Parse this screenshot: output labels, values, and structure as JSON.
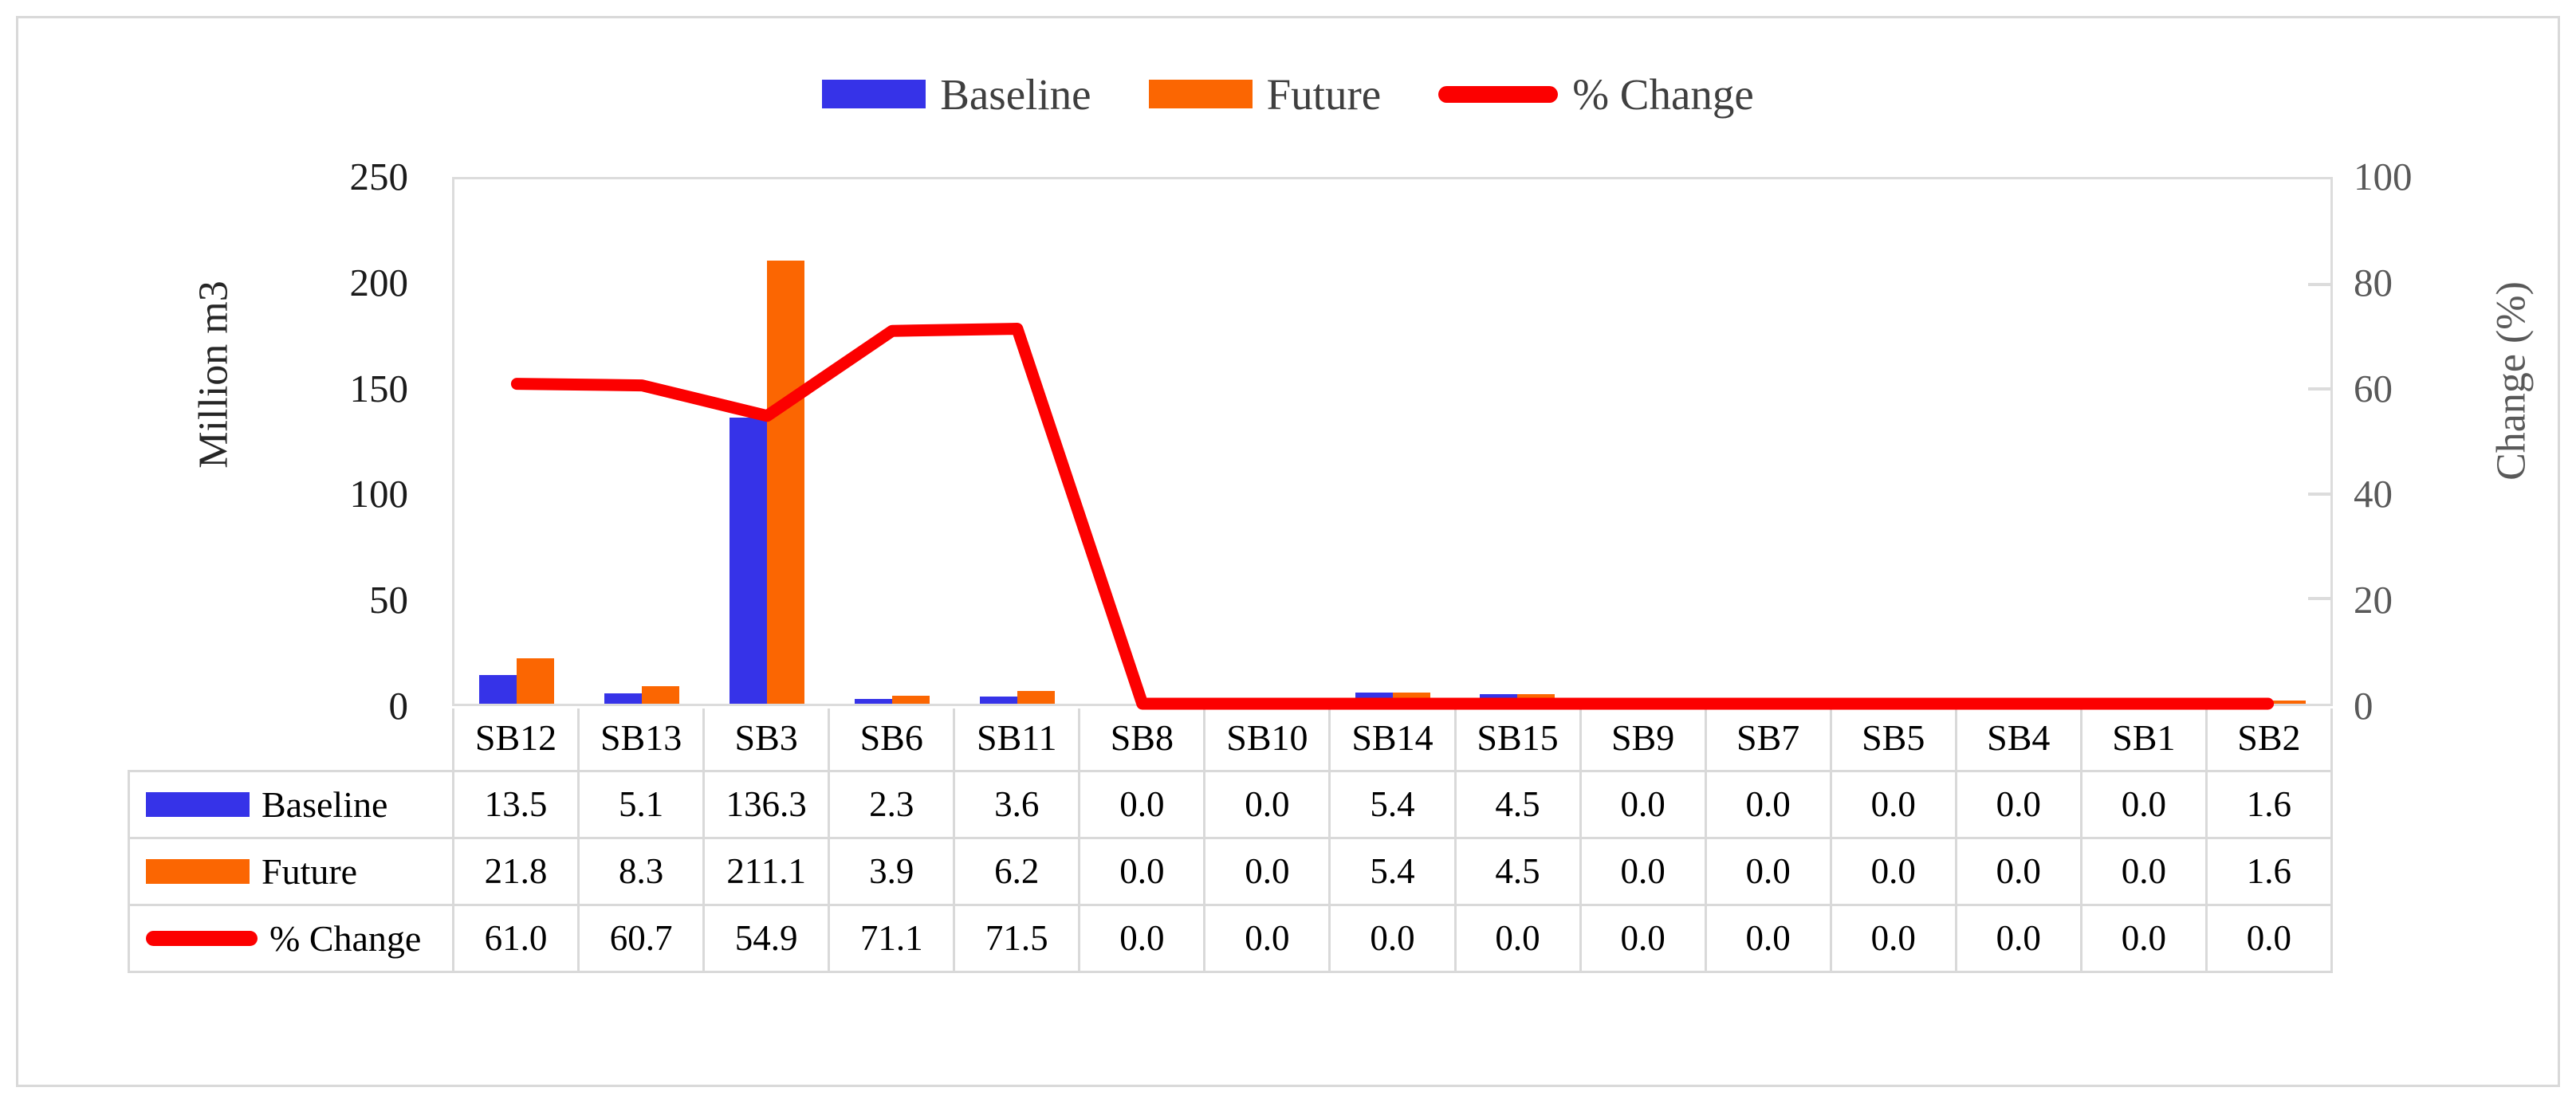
{
  "figure": {
    "background_color": "#FFFFFF",
    "frame_color": "#D9D9D9"
  },
  "chart_data": {
    "type": "bar",
    "subtype": "combo bar + line with data table",
    "categories": [
      "SB12",
      "SB13",
      "SB3",
      "SB6",
      "SB11",
      "SB8",
      "SB10",
      "SB14",
      "SB15",
      "SB9",
      "SB7",
      "SB5",
      "SB4",
      "SB1",
      "SB2"
    ],
    "series": [
      {
        "name": "Baseline",
        "type": "bar",
        "axis": "left",
        "color": "#3633E8",
        "values": [
          13.5,
          5.1,
          136.3,
          2.3,
          3.6,
          0.0,
          0.0,
          5.4,
          4.5,
          0.0,
          0.0,
          0.0,
          0.0,
          0.0,
          1.6
        ]
      },
      {
        "name": "Future",
        "type": "bar",
        "axis": "left",
        "color": "#FB6602",
        "values": [
          21.8,
          8.3,
          211.1,
          3.9,
          6.2,
          0.0,
          0.0,
          5.4,
          4.5,
          0.0,
          0.0,
          0.0,
          0.0,
          0.0,
          1.6
        ]
      },
      {
        "name": "% Change",
        "type": "line",
        "axis": "right",
        "color": "#FC0000",
        "values": [
          61.0,
          60.7,
          54.9,
          71.1,
          71.5,
          0.0,
          0.0,
          0.0,
          0.0,
          0.0,
          0.0,
          0.0,
          0.0,
          0.0,
          0.0
        ]
      }
    ],
    "title": "",
    "xlabel": "",
    "ylabel_left": "Million m3",
    "ylabel_right": "Change (%)",
    "left_axis": {
      "min": 0,
      "max": 250,
      "step": 50,
      "ticks": [
        250,
        200,
        150,
        100,
        50,
        0
      ]
    },
    "right_axis": {
      "min": 0,
      "max": 100,
      "step": 20,
      "ticks": [
        100,
        80,
        60,
        40,
        20,
        0
      ]
    },
    "legend_position": "top",
    "grid": false,
    "data_table_shown": true,
    "value_decimals": 1
  }
}
